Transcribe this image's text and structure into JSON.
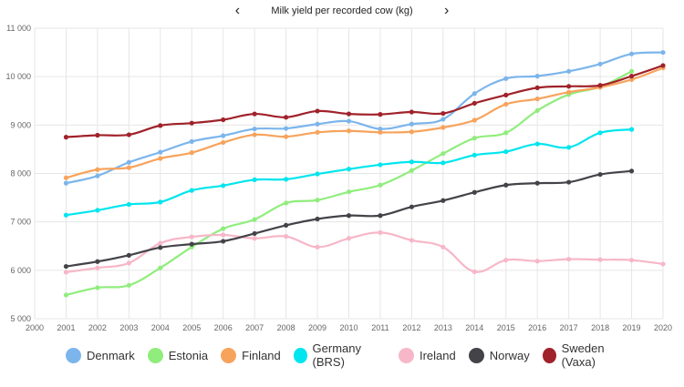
{
  "title": "Milk yield per recorded cow (kg)",
  "nav": {
    "prev_glyph": "‹",
    "next_glyph": "›"
  },
  "chart_data": {
    "type": "line",
    "title": "Milk yield per recorded cow (kg)",
    "xlabel": "",
    "ylabel": "",
    "xlim": [
      2000,
      2020
    ],
    "ylim": [
      5000,
      11000
    ],
    "x_ticks": [
      "2000",
      "2001",
      "2002",
      "2003",
      "2004",
      "2005",
      "2006",
      "2007",
      "2008",
      "2009",
      "2010",
      "2011",
      "2012",
      "2013",
      "2014",
      "2015",
      "2016",
      "2017",
      "2018",
      "2019",
      "2020"
    ],
    "y_ticks": [
      {
        "value": 5000,
        "label": "5 000"
      },
      {
        "value": 6000,
        "label": "6 000"
      },
      {
        "value": 7000,
        "label": "7 000"
      },
      {
        "value": 8000,
        "label": "8 000"
      },
      {
        "value": 9000,
        "label": "9 000"
      },
      {
        "value": 10000,
        "label": "10 000"
      },
      {
        "value": 11000,
        "label": "11 000"
      }
    ],
    "grid": true,
    "legend_position": "bottom",
    "series": [
      {
        "name": "Denmark",
        "color": "#7cb5ec",
        "x": [
          2001,
          2002,
          2003,
          2004,
          2005,
          2006,
          2007,
          2008,
          2009,
          2010,
          2011,
          2012,
          2013,
          2014,
          2015,
          2016,
          2017,
          2018,
          2019,
          2020
        ],
        "values": [
          7800,
          7950,
          8230,
          8440,
          8660,
          8780,
          8920,
          8930,
          9020,
          9080,
          8920,
          9020,
          9120,
          9650,
          9960,
          10010,
          10110,
          10260,
          10470,
          10500
        ]
      },
      {
        "name": "Estonia",
        "color": "#90ed7d",
        "x": [
          2001,
          2002,
          2003,
          2004,
          2005,
          2006,
          2007,
          2008,
          2009,
          2010,
          2011,
          2012,
          2013,
          2014,
          2015,
          2016,
          2017,
          2018,
          2019
        ],
        "values": [
          5490,
          5640,
          5690,
          6050,
          6480,
          6860,
          7050,
          7390,
          7450,
          7620,
          7760,
          8060,
          8410,
          8730,
          8840,
          9300,
          9630,
          9790,
          10110
        ]
      },
      {
        "name": "Finland",
        "color": "#f7a35c",
        "x": [
          2001,
          2002,
          2003,
          2004,
          2005,
          2006,
          2007,
          2008,
          2009,
          2010,
          2011,
          2012,
          2013,
          2014,
          2015,
          2016,
          2017,
          2018,
          2019,
          2020
        ],
        "values": [
          7910,
          8080,
          8120,
          8310,
          8430,
          8640,
          8800,
          8760,
          8850,
          8880,
          8850,
          8860,
          8950,
          9100,
          9430,
          9540,
          9680,
          9780,
          9940,
          10180
        ]
      },
      {
        "name": "Germany (BRS)",
        "color": "#00e5ee",
        "x": [
          2001,
          2002,
          2003,
          2004,
          2005,
          2006,
          2007,
          2008,
          2009,
          2010,
          2011,
          2012,
          2013,
          2014,
          2015,
          2016,
          2017,
          2018,
          2019
        ],
        "values": [
          7140,
          7240,
          7360,
          7410,
          7650,
          7750,
          7870,
          7880,
          7990,
          8090,
          8180,
          8240,
          8220,
          8380,
          8450,
          8610,
          8540,
          8840,
          8910
        ]
      },
      {
        "name": "Ireland",
        "color": "#f7b7c8",
        "x": [
          2001,
          2002,
          2003,
          2004,
          2005,
          2006,
          2007,
          2008,
          2009,
          2010,
          2011,
          2012,
          2013,
          2014,
          2015,
          2016,
          2017,
          2018,
          2019,
          2020
        ],
        "values": [
          5960,
          6050,
          6150,
          6560,
          6690,
          6730,
          6660,
          6700,
          6480,
          6660,
          6780,
          6620,
          6480,
          5970,
          6210,
          6190,
          6230,
          6220,
          6210,
          6130
        ]
      },
      {
        "name": "Norway",
        "color": "#434348",
        "x": [
          2001,
          2002,
          2003,
          2004,
          2005,
          2006,
          2007,
          2008,
          2009,
          2010,
          2011,
          2012,
          2013,
          2014,
          2015,
          2016,
          2017,
          2018,
          2019
        ],
        "values": [
          6080,
          6180,
          6310,
          6470,
          6540,
          6600,
          6760,
          6930,
          7060,
          7130,
          7130,
          7310,
          7440,
          7610,
          7760,
          7800,
          7820,
          7980,
          8050
        ]
      },
      {
        "name": "Sweden (Vaxa)",
        "color": "#a0222a",
        "x": [
          2001,
          2002,
          2003,
          2004,
          2005,
          2006,
          2007,
          2008,
          2009,
          2010,
          2011,
          2012,
          2013,
          2014,
          2015,
          2016,
          2017,
          2018,
          2019,
          2020
        ],
        "values": [
          8750,
          8790,
          8800,
          8990,
          9040,
          9110,
          9230,
          9160,
          9290,
          9230,
          9220,
          9270,
          9240,
          9450,
          9620,
          9770,
          9800,
          9820,
          10010,
          10230
        ]
      }
    ]
  }
}
